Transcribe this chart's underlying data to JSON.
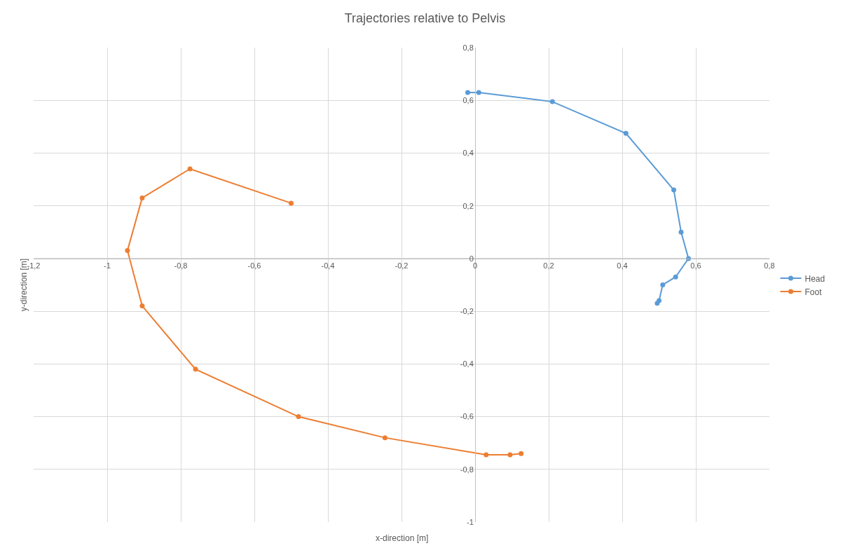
{
  "chart_data": {
    "type": "line",
    "title": "Trajectories relative to Pelvis",
    "xlabel": "x-direction [m]",
    "ylabel": "y-direction [m]",
    "series": [
      {
        "name": "Head",
        "color": "#5b9bd5",
        "x": [
          -0.02,
          0.01,
          0.21,
          0.41,
          0.54,
          0.56,
          0.58,
          0.545,
          0.51,
          0.5,
          0.495
        ],
        "values": [
          0.63,
          0.63,
          0.595,
          0.475,
          0.26,
          0.1,
          0.0,
          -0.07,
          -0.1,
          -0.16,
          -0.17
        ]
      },
      {
        "name": "Foot",
        "color": "#ed7d31",
        "x": [
          -0.5,
          -0.775,
          -0.905,
          -0.945,
          -0.905,
          -0.76,
          -0.48,
          -0.245,
          0.03,
          0.095,
          0.125
        ],
        "values": [
          0.21,
          0.34,
          0.23,
          0.03,
          -0.18,
          -0.42,
          -0.6,
          -0.68,
          -0.745,
          -0.745,
          -0.74
        ]
      }
    ],
    "line_style": "solid",
    "marker": "circle",
    "grid": true,
    "legend": "right",
    "xlim": [
      -1.2,
      0.8
    ],
    "ylim": [
      -1,
      0.8
    ],
    "xticks": [
      {
        "value": -1.2,
        "label": "-1,2"
      },
      -1,
      {
        "value": -0.8,
        "label": "-0,8"
      },
      {
        "value": -0.6,
        "label": "-0,6"
      },
      {
        "value": -0.4,
        "label": "-0,4"
      },
      {
        "value": -0.2,
        "label": "-0,2"
      },
      0,
      {
        "value": 0.2,
        "label": "0,2"
      },
      {
        "value": 0.4,
        "label": "0,4"
      },
      {
        "value": 0.6,
        "label": "0,6"
      },
      {
        "value": 0.8,
        "label": "0,8"
      }
    ],
    "yticks": [
      -1,
      {
        "value": -0.8,
        "label": "-0,8"
      },
      {
        "value": -0.6,
        "label": "-0,6"
      },
      {
        "value": -0.4,
        "label": "-0,4"
      },
      {
        "value": -0.2,
        "label": "-0,2"
      },
      0,
      {
        "value": 0.2,
        "label": "0,2"
      },
      {
        "value": 0.4,
        "label": "0,4"
      },
      {
        "value": 0.6,
        "label": "0,6"
      },
      {
        "value": 0.8,
        "label": "0,8"
      }
    ]
  }
}
